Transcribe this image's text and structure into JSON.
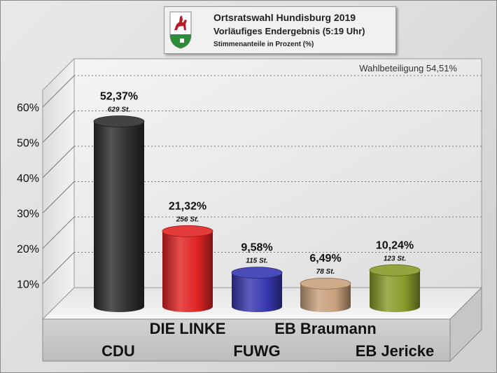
{
  "header": {
    "title": "Ortsratswahl Hundisburg 2019",
    "subtitle": "Vorläufiges Endergebnis (5:19 Uhr)",
    "note": "Stimmenanteile in Prozent (%)",
    "logo_icon": "hundisburg-coat-of-arms-icon"
  },
  "turnout": "Wahlbeteiligung 54,51%",
  "chart_data": {
    "type": "bar",
    "title": "Ortsratswahl Hundisburg 2019",
    "categories": [
      "CDU",
      "DIE LINKE",
      "FUWG",
      "EB Braumann",
      "EB Jericke"
    ],
    "values": [
      52.37,
      21.32,
      9.58,
      6.49,
      10.24
    ],
    "value_labels": [
      "52,37%",
      "21,32%",
      "9,58%",
      "6,49%",
      "10,24%"
    ],
    "votes": [
      "629 St.",
      "256 St.",
      "115 St.",
      "78 St.",
      "123 St."
    ],
    "colors": [
      "#2e2e2e",
      "#e02424",
      "#3838b0",
      "#c8a07c",
      "#8a9a2a"
    ],
    "y_ticks": [
      "10%",
      "20%",
      "30%",
      "40%",
      "50%",
      "60%"
    ],
    "tick_values": [
      10,
      20,
      30,
      40,
      50,
      60
    ],
    "ylim": [
      0,
      65
    ],
    "grid": true,
    "ylabel": "",
    "xlabel": ""
  }
}
